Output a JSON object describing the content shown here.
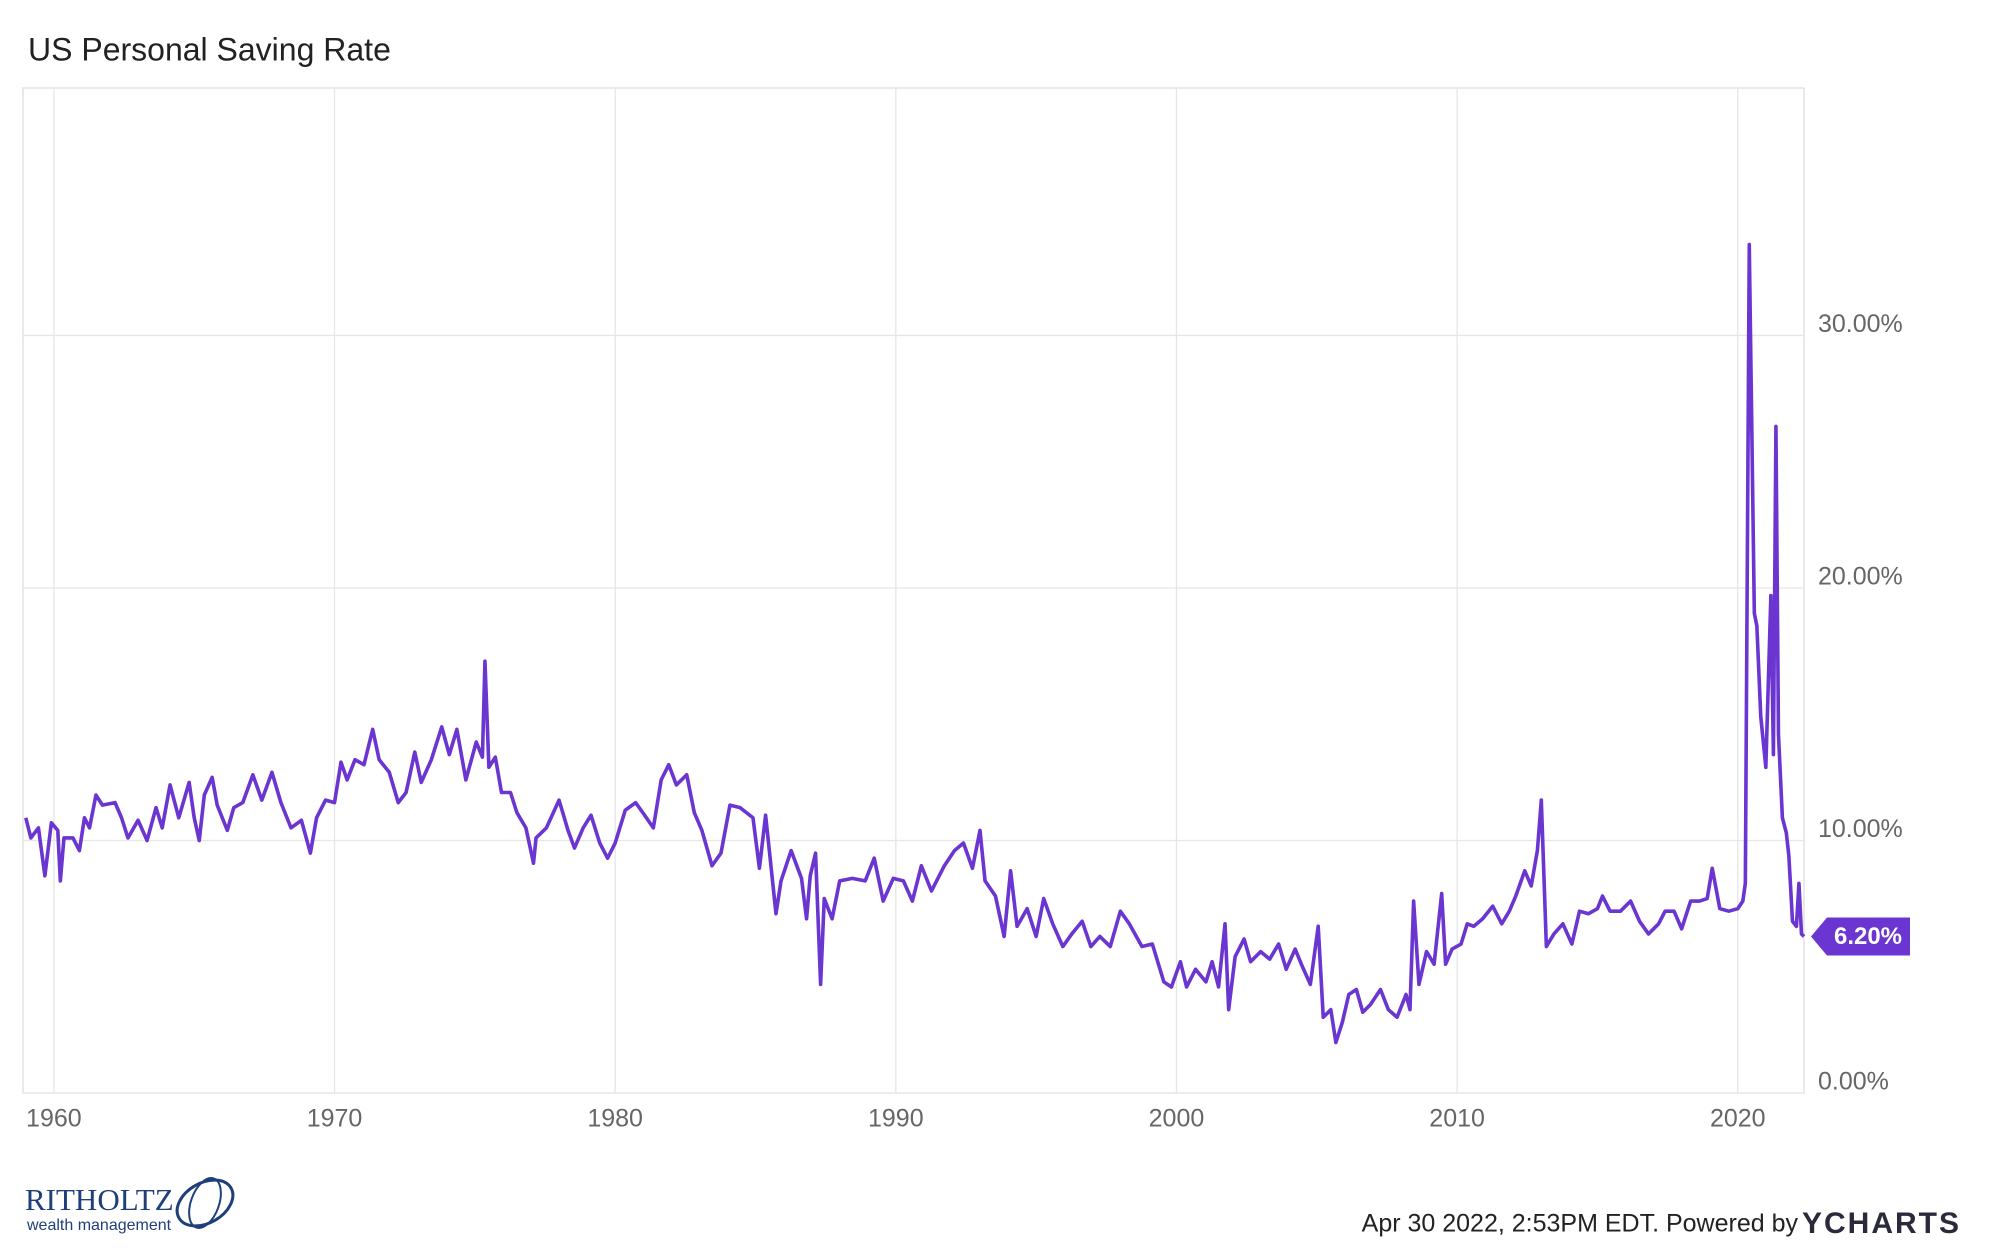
{
  "chart_data": {
    "type": "line",
    "title": "US Personal Saving Rate",
    "color": "#6a35d0",
    "grid": true,
    "xlim": [
      1958.9,
      2022.36
    ],
    "ylim": [
      0,
      39.8
    ],
    "xticks": [
      1960,
      1970,
      1980,
      1990,
      2000,
      2010,
      2020
    ],
    "yticks": [
      {
        "value": 0,
        "label": "0.00%"
      },
      {
        "value": 10,
        "label": "10.00%"
      },
      {
        "value": 20,
        "label": "20.00%"
      },
      {
        "value": 30,
        "label": "30.00%"
      }
    ],
    "end_label": {
      "value": 6.2,
      "label": "6.20%"
    },
    "x": [
      1959.0,
      1959.18,
      1959.45,
      1959.68,
      1959.91,
      1960.14,
      1960.23,
      1960.36,
      1960.68,
      1960.91,
      1961.09,
      1961.27,
      1961.5,
      1961.73,
      1962.18,
      1962.41,
      1962.64,
      1963.0,
      1963.32,
      1963.64,
      1963.86,
      1964.14,
      1964.45,
      1964.82,
      1965.0,
      1965.18,
      1965.36,
      1965.64,
      1965.82,
      1966.18,
      1966.41,
      1966.73,
      1967.09,
      1967.41,
      1967.77,
      1968.09,
      1968.45,
      1968.82,
      1969.14,
      1969.36,
      1969.68,
      1970.0,
      1970.23,
      1970.45,
      1970.73,
      1971.05,
      1971.36,
      1971.59,
      1971.95,
      1972.27,
      1972.55,
      1972.86,
      1973.09,
      1973.45,
      1973.82,
      1974.09,
      1974.36,
      1974.68,
      1975.05,
      1975.27,
      1975.36,
      1975.5,
      1975.73,
      1975.95,
      1976.27,
      1976.5,
      1976.82,
      1977.09,
      1977.18,
      1977.55,
      1978.0,
      1978.32,
      1978.55,
      1978.86,
      1979.14,
      1979.45,
      1979.73,
      1980.0,
      1980.36,
      1980.73,
      1981.05,
      1981.36,
      1981.64,
      1981.91,
      1982.18,
      1982.55,
      1982.82,
      1983.09,
      1983.45,
      1983.77,
      1984.09,
      1984.45,
      1984.91,
      1985.14,
      1985.36,
      1985.73,
      1985.91,
      1986.27,
      1986.64,
      1986.82,
      1986.95,
      1987.14,
      1987.32,
      1987.45,
      1987.73,
      1988.0,
      1988.45,
      1988.91,
      1989.23,
      1989.55,
      1989.91,
      1990.27,
      1990.59,
      1990.91,
      1991.27,
      1991.73,
      1992.09,
      1992.41,
      1992.73,
      1993.0,
      1993.18,
      1993.55,
      1993.86,
      1994.09,
      1994.32,
      1994.68,
      1995.0,
      1995.27,
      1995.59,
      1995.95,
      1996.27,
      1996.64,
      1996.95,
      1997.27,
      1997.64,
      1998.0,
      1998.32,
      1998.77,
      1999.14,
      1999.55,
      1999.82,
      2000.14,
      2000.36,
      2000.68,
      2001.05,
      2001.27,
      2001.5,
      2001.73,
      2001.86,
      2002.09,
      2002.41,
      2002.64,
      2003.0,
      2003.32,
      2003.64,
      2003.91,
      2004.23,
      2004.45,
      2004.77,
      2005.05,
      2005.23,
      2005.5,
      2005.68,
      2005.91,
      2006.14,
      2006.41,
      2006.64,
      2006.91,
      2007.27,
      2007.55,
      2007.86,
      2008.18,
      2008.32,
      2008.45,
      2008.64,
      2008.91,
      2009.18,
      2009.45,
      2009.59,
      2009.82,
      2010.14,
      2010.36,
      2010.59,
      2010.91,
      2011.27,
      2011.59,
      2011.86,
      2012.09,
      2012.41,
      2012.64,
      2012.86,
      2013.0,
      2013.18,
      2013.45,
      2013.77,
      2014.09,
      2014.36,
      2014.68,
      2015.0,
      2015.18,
      2015.45,
      2015.82,
      2016.18,
      2016.5,
      2016.82,
      2017.18,
      2017.41,
      2017.73,
      2018.0,
      2018.32,
      2018.64,
      2018.91,
      2019.09,
      2019.36,
      2019.68,
      2020.0,
      2020.18,
      2020.27,
      2020.41,
      2020.59,
      2020.68,
      2020.82,
      2021.0,
      2021.18,
      2021.27,
      2021.36,
      2021.45,
      2021.59,
      2021.73,
      2021.82,
      2021.95,
      2022.09,
      2022.18,
      2022.27,
      2022.36
    ],
    "values": [
      10.9,
      10.1,
      10.5,
      8.6,
      10.7,
      10.4,
      8.4,
      10.1,
      10.1,
      9.6,
      10.9,
      10.5,
      11.8,
      11.4,
      11.5,
      10.9,
      10.1,
      10.8,
      10.0,
      11.3,
      10.5,
      12.2,
      10.9,
      12.3,
      10.9,
      10.0,
      11.8,
      12.5,
      11.4,
      10.4,
      11.3,
      11.5,
      12.6,
      11.6,
      12.7,
      11.5,
      10.5,
      10.8,
      9.5,
      10.9,
      11.6,
      11.5,
      13.1,
      12.4,
      13.2,
      13.0,
      14.4,
      13.2,
      12.7,
      11.5,
      11.9,
      13.5,
      12.3,
      13.2,
      14.5,
      13.4,
      14.4,
      12.4,
      13.9,
      13.3,
      17.1,
      12.9,
      13.3,
      11.9,
      11.9,
      11.1,
      10.5,
      9.1,
      10.1,
      10.5,
      11.6,
      10.4,
      9.7,
      10.5,
      11.0,
      9.9,
      9.3,
      9.9,
      11.2,
      11.5,
      11.0,
      10.5,
      12.4,
      13.0,
      12.2,
      12.6,
      11.1,
      10.4,
      9.0,
      9.5,
      11.4,
      11.3,
      10.9,
      8.9,
      11.0,
      7.1,
      8.4,
      9.6,
      8.5,
      6.9,
      8.6,
      9.5,
      4.3,
      7.7,
      6.9,
      8.4,
      8.5,
      8.4,
      9.3,
      7.6,
      8.5,
      8.4,
      7.6,
      9.0,
      8.0,
      9.0,
      9.6,
      9.9,
      8.9,
      10.4,
      8.4,
      7.8,
      6.2,
      8.8,
      6.6,
      7.3,
      6.2,
      7.7,
      6.7,
      5.8,
      6.3,
      6.8,
      5.8,
      6.2,
      5.8,
      7.2,
      6.7,
      5.8,
      5.9,
      4.4,
      4.2,
      5.2,
      4.2,
      4.9,
      4.4,
      5.2,
      4.2,
      6.7,
      3.3,
      5.4,
      6.1,
      5.2,
      5.6,
      5.3,
      5.9,
      4.9,
      5.7,
      5.1,
      4.3,
      6.6,
      3.0,
      3.3,
      2.0,
      2.8,
      3.9,
      4.1,
      3.2,
      3.5,
      4.1,
      3.3,
      3.0,
      3.9,
      3.3,
      7.6,
      4.3,
      5.6,
      5.1,
      7.9,
      5.1,
      5.7,
      5.9,
      6.7,
      6.6,
      6.9,
      7.4,
      6.7,
      7.2,
      7.8,
      8.8,
      8.2,
      9.6,
      11.6,
      5.8,
      6.3,
      6.7,
      5.9,
      7.2,
      7.1,
      7.3,
      7.8,
      7.2,
      7.2,
      7.6,
      6.8,
      6.3,
      6.7,
      7.2,
      7.2,
      6.5,
      7.6,
      7.6,
      7.7,
      8.9,
      7.3,
      7.2,
      7.3,
      7.6,
      8.3,
      33.6,
      19.0,
      18.5,
      14.9,
      12.9,
      19.7,
      13.4,
      26.4,
      14.2,
      10.9,
      10.3,
      9.4,
      6.8,
      6.6,
      8.3,
      6.3,
      6.2
    ]
  },
  "footer": {
    "timestamp": "Apr 30 2022, 2:53PM EDT. Powered by",
    "brand": "YCHARTS",
    "logo": "RITHOLTZ",
    "logo_sub": "wealth management"
  }
}
